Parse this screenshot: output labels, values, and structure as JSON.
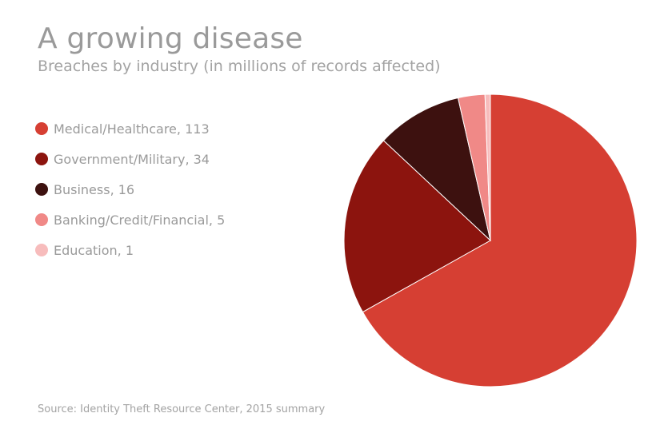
{
  "chart_data": {
    "type": "pie",
    "title": "A growing disease",
    "subtitle": "Breaches by industry (in millions of records affected)",
    "source": "Source: Identity Theft Resource Center, 2015 summary",
    "start_angle_deg": 0,
    "direction": "clockwise",
    "legend_position": "left",
    "slices": [
      {
        "label": "Medical/Healthcare",
        "value": 113,
        "color": "#d63f33"
      },
      {
        "label": "Government/Military",
        "value": 34,
        "color": "#8c140e"
      },
      {
        "label": "Business",
        "value": 16,
        "color": "#3d110f"
      },
      {
        "label": "Banking/Credit/Financial",
        "value": 5,
        "color": "#f08987"
      },
      {
        "label": "Education",
        "value": 1,
        "color": "#f7bcbc"
      }
    ]
  }
}
